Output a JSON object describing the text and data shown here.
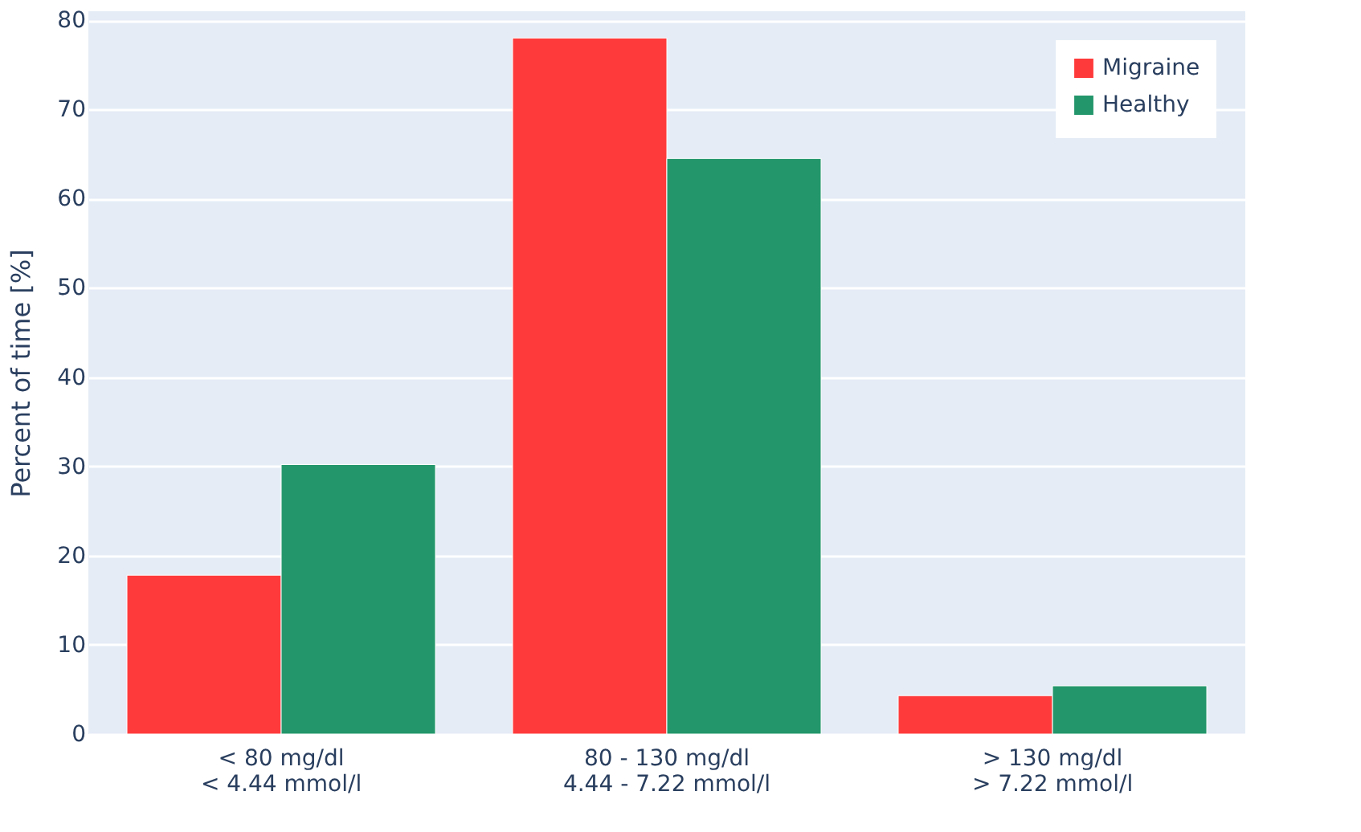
{
  "chart_data": {
    "type": "bar",
    "ylabel": "Percent of time [%]",
    "categories": [
      "< 80 mg/dl\n< 4.44 mmol/l",
      "80 - 130 mg/dl\n4.44 - 7.22 mmol/l",
      "> 130 mg/dl\n> 7.22 mmol/l"
    ],
    "series": [
      {
        "name": "Migraine",
        "color": "#ff3a3a",
        "values": [
          17.8,
          78,
          4.3
        ]
      },
      {
        "name": "Healthy",
        "color": "#23966b",
        "values": [
          30.2,
          64.5,
          5.4
        ]
      }
    ],
    "ylim": [
      0,
      81
    ],
    "yticks": [
      0,
      10,
      20,
      30,
      40,
      50,
      60,
      70,
      80
    ],
    "grid": "y",
    "legend": "top right"
  }
}
